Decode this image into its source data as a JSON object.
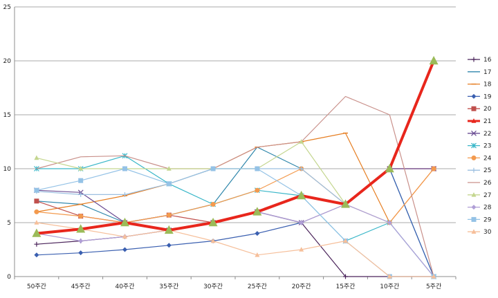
{
  "chart_data": {
    "type": "line",
    "title": "",
    "xlabel": "",
    "ylabel": "",
    "ylim": [
      0,
      25
    ],
    "yticks": [
      0,
      5,
      10,
      15,
      20,
      25
    ],
    "grid": "horizontal",
    "legend_position": "right",
    "categories": [
      "50주간",
      "45주간",
      "40주간",
      "35주간",
      "30주간",
      "25주간",
      "20주간",
      "15주간",
      "10주간",
      "5주간"
    ],
    "series": [
      {
        "name": "16",
        "color": "#4a235a",
        "marker": "plus",
        "width": 1.2,
        "values": [
          3,
          3.3,
          3.7,
          4.3,
          5,
          6,
          5,
          0,
          0,
          0
        ]
      },
      {
        "name": "17",
        "color": "#2e86ab",
        "marker": "none",
        "width": 1.2,
        "values": [
          7,
          6.7,
          5,
          5.7,
          6.7,
          12,
          10,
          null,
          10,
          0
        ]
      },
      {
        "name": "18",
        "color": "#e67e22",
        "marker": "dash",
        "width": 1.2,
        "values": [
          6,
          6.7,
          7.5,
          8.6,
          10,
          12,
          12.5,
          13.3,
          5,
          10
        ]
      },
      {
        "name": "19",
        "color": "#3a5fb0",
        "marker": "diamond",
        "width": 1.2,
        "values": [
          2,
          2.2,
          2.5,
          2.9,
          3.3,
          4,
          5,
          null,
          10,
          0
        ]
      },
      {
        "name": "20",
        "color": "#c0504d",
        "marker": "square",
        "width": 1.2,
        "values": [
          7,
          5.6,
          5,
          5.7,
          5,
          6,
          7.5,
          6.7,
          10,
          10
        ]
      },
      {
        "name": "21",
        "color": "#e8261c",
        "marker": "triangle",
        "width": 4,
        "values": [
          4,
          4.4,
          5,
          4.3,
          5,
          6,
          7.5,
          6.7,
          10,
          20
        ]
      },
      {
        "name": "22",
        "color": "#6a4c93",
        "marker": "x",
        "width": 1.2,
        "values": [
          8,
          7.8,
          5,
          4.3,
          5,
          6,
          5,
          6.7,
          10,
          10
        ]
      },
      {
        "name": "23",
        "color": "#38b6c8",
        "marker": "star",
        "width": 1.2,
        "values": [
          10,
          10,
          11.2,
          8.6,
          6.7,
          8,
          7.5,
          3.3,
          5,
          0
        ]
      },
      {
        "name": "24",
        "color": "#f39a4e",
        "marker": "circle",
        "width": 1.2,
        "values": [
          6,
          5.6,
          5,
          5.7,
          6.7,
          8,
          10,
          6.7,
          5,
          10
        ]
      },
      {
        "name": "25",
        "color": "#9bbfe0",
        "marker": "plus",
        "width": 1.2,
        "values": [
          7.9,
          7.6,
          7.6,
          8.6,
          10,
          10,
          10,
          6.7,
          5,
          0
        ]
      },
      {
        "name": "26",
        "color": "#c9908a",
        "marker": "none",
        "width": 1.2,
        "values": [
          10,
          11.1,
          11.2,
          10,
          10,
          12,
          12.5,
          16.7,
          15,
          0
        ]
      },
      {
        "name": "27",
        "color": "#c4d68f",
        "marker": "triangle",
        "width": 1.2,
        "values": [
          11,
          10,
          10,
          10,
          10,
          10,
          12.5,
          6.7,
          10,
          20
        ]
      },
      {
        "name": "28",
        "color": "#b09fd6",
        "marker": "diamond",
        "width": 1.2,
        "values": [
          4,
          3.3,
          3.7,
          4.3,
          5,
          6,
          5,
          6.7,
          5,
          0
        ]
      },
      {
        "name": "29",
        "color": "#94c2e6",
        "marker": "square",
        "width": 1.2,
        "values": [
          8,
          8.9,
          10,
          8.6,
          10,
          10,
          7.5,
          3.3,
          0,
          0
        ]
      },
      {
        "name": "30",
        "color": "#f6bf9a",
        "marker": "triangle",
        "width": 1.2,
        "values": [
          5,
          4.4,
          3.7,
          4.3,
          3.3,
          2,
          2.5,
          3.3,
          0,
          0
        ]
      }
    ]
  }
}
